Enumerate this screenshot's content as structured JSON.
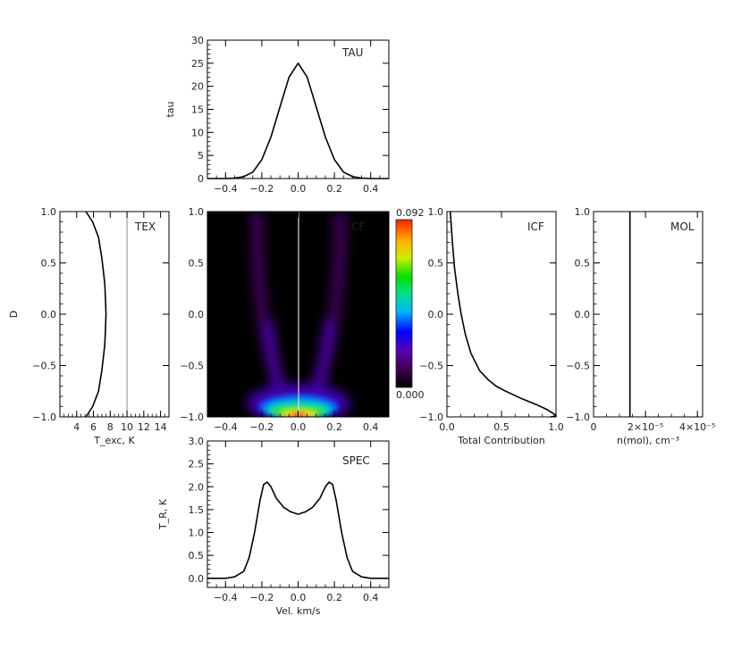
{
  "chart_data": [
    {
      "id": "tau",
      "type": "line",
      "title": "TAU",
      "xlabel": "",
      "ylabel": "tau",
      "xlim": [
        -0.5,
        0.5
      ],
      "ylim": [
        0,
        30
      ],
      "xticks": [
        -0.4,
        -0.2,
        0.0,
        0.2,
        0.4
      ],
      "xtick_labels": [
        "−0.4",
        "−0.2",
        "0.0",
        "0.2",
        "0.4"
      ],
      "yticks": [
        0,
        5,
        10,
        15,
        20,
        25,
        30
      ],
      "ytick_labels": [
        "0",
        "5",
        "10",
        "15",
        "20",
        "25",
        "30"
      ],
      "series": [
        {
          "x": [
            -0.5,
            -0.4,
            -0.35,
            -0.3,
            -0.25,
            -0.2,
            -0.15,
            -0.1,
            -0.05,
            0.0,
            0.05,
            0.1,
            0.15,
            0.2,
            0.25,
            0.3,
            0.35,
            0.4,
            0.5
          ],
          "y": [
            0.0,
            0.0,
            0.1,
            0.4,
            1.4,
            4.1,
            9.0,
            15.5,
            22.0,
            25.0,
            22.0,
            15.5,
            9.0,
            4.1,
            1.4,
            0.4,
            0.1,
            0.0,
            0.0
          ]
        }
      ]
    },
    {
      "id": "tex",
      "type": "line",
      "title": "TEX",
      "xlabel": "T_exc, K",
      "ylabel": "D",
      "xlim": [
        2,
        15
      ],
      "ylim": [
        -1.0,
        1.0
      ],
      "xticks": [
        4,
        6,
        8,
        10,
        12,
        14
      ],
      "xtick_labels": [
        "4",
        "6",
        "8",
        "10",
        "12",
        "14"
      ],
      "yticks": [
        -1.0,
        -0.5,
        0.0,
        0.5,
        1.0
      ],
      "ytick_labels": [
        "−1.0",
        "−0.5",
        "0.0",
        "0.5",
        "1.0"
      ],
      "series": [
        {
          "x": [
            5.1,
            5.9,
            6.6,
            7.0,
            7.35,
            7.45,
            7.5,
            7.45,
            7.35,
            7.0,
            6.6,
            5.9,
            5.1
          ],
          "y": [
            -1.0,
            -0.9,
            -0.75,
            -0.55,
            -0.3,
            -0.12,
            0.0,
            0.12,
            0.3,
            0.55,
            0.75,
            0.9,
            1.0
          ]
        },
        {
          "x": [
            10.0,
            10.0
          ],
          "y": [
            -1.0,
            1.0
          ]
        }
      ]
    },
    {
      "id": "cf",
      "type": "heatmap",
      "title": "CF",
      "xlabel": "",
      "ylabel": "",
      "xlim": [
        -0.5,
        0.5
      ],
      "ylim": [
        -1.0,
        1.0
      ],
      "xticks": [
        -0.4,
        -0.2,
        0.0,
        0.2,
        0.4
      ],
      "xtick_labels": [
        "−0.4",
        "−0.2",
        "0.0",
        "0.2",
        "0.4"
      ],
      "yticks": [
        -1.0,
        -0.5,
        0.0,
        0.5,
        1.0
      ],
      "ytick_labels": [
        "−1.0",
        "−0.5",
        "0.0",
        "0.5",
        "1.0"
      ],
      "colorbar": {
        "min": 0.0,
        "max": 0.092,
        "labels": [
          "0.092",
          "0.000"
        ]
      }
    },
    {
      "id": "icf",
      "type": "line",
      "title": "ICF",
      "xlabel": "Total Contribution",
      "ylabel": "",
      "xlim": [
        0.0,
        1.0
      ],
      "ylim": [
        -1.0,
        1.0
      ],
      "xticks": [
        0.0,
        0.5,
        1.0
      ],
      "xtick_labels": [
        "0.0",
        "0.5",
        "1.0"
      ],
      "yticks": [
        -1.0,
        -0.5,
        0.0,
        0.5,
        1.0
      ],
      "ytick_labels": [
        "−1.0",
        "−0.5",
        "0.0",
        "0.5",
        "1.0"
      ],
      "series": [
        {
          "x": [
            0.03,
            0.05,
            0.07,
            0.1,
            0.13,
            0.17,
            0.22,
            0.3,
            0.38,
            0.45,
            0.52,
            0.6,
            0.68,
            0.75,
            0.82,
            0.88,
            0.92,
            0.95,
            0.98,
            1.0,
            0.95
          ],
          "y": [
            1.0,
            0.7,
            0.45,
            0.2,
            0.0,
            -0.2,
            -0.38,
            -0.55,
            -0.64,
            -0.7,
            -0.74,
            -0.78,
            -0.82,
            -0.85,
            -0.88,
            -0.91,
            -0.93,
            -0.95,
            -0.97,
            -0.99,
            -1.0
          ]
        }
      ]
    },
    {
      "id": "mol",
      "type": "line",
      "title": "MOL",
      "xlabel": "n(mol), cm⁻³",
      "ylabel": "",
      "xlim": [
        0,
        4.2e-05
      ],
      "ylim": [
        -1.0,
        1.0
      ],
      "xticks": [
        0,
        2e-05,
        4e-05
      ],
      "xtick_labels": [
        "0",
        "2×10⁻⁵",
        "4×10⁻⁵"
      ],
      "yticks": [
        -1.0,
        -0.5,
        0.0,
        0.5,
        1.0
      ],
      "ytick_labels": [
        "−1.0",
        "−0.5",
        "0.0",
        "0.5",
        "1.0"
      ],
      "series": [
        {
          "x": [
            1.4e-05,
            1.4e-05
          ],
          "y": [
            -1.0,
            1.0
          ]
        }
      ]
    },
    {
      "id": "spec",
      "type": "line",
      "title": "SPEC",
      "xlabel": "Vel. km/s",
      "ylabel": "T_R, K",
      "xlim": [
        -0.5,
        0.5
      ],
      "ylim": [
        -0.2,
        3.0
      ],
      "xticks": [
        -0.4,
        -0.2,
        0.0,
        0.2,
        0.4
      ],
      "xtick_labels": [
        "−0.4",
        "−0.2",
        "0.0",
        "0.2",
        "0.4"
      ],
      "yticks": [
        0.0,
        0.5,
        1.0,
        1.5,
        2.0,
        2.5,
        3.0
      ],
      "ytick_labels": [
        "0.0",
        "0.5",
        "1.0",
        "1.5",
        "2.0",
        "2.5",
        "3.0"
      ],
      "series": [
        {
          "x": [
            -0.5,
            -0.4,
            -0.35,
            -0.3,
            -0.27,
            -0.24,
            -0.21,
            -0.19,
            -0.17,
            -0.15,
            -0.12,
            -0.08,
            -0.04,
            0.0,
            0.04,
            0.08,
            0.12,
            0.15,
            0.17,
            0.19,
            0.21,
            0.24,
            0.27,
            0.3,
            0.35,
            0.4,
            0.5
          ],
          "y": [
            0.0,
            0.0,
            0.03,
            0.15,
            0.45,
            1.0,
            1.7,
            2.05,
            2.1,
            2.0,
            1.75,
            1.55,
            1.45,
            1.4,
            1.45,
            1.55,
            1.75,
            2.0,
            2.1,
            2.05,
            1.7,
            1.0,
            0.45,
            0.15,
            0.03,
            0.0,
            0.0
          ]
        }
      ]
    }
  ]
}
